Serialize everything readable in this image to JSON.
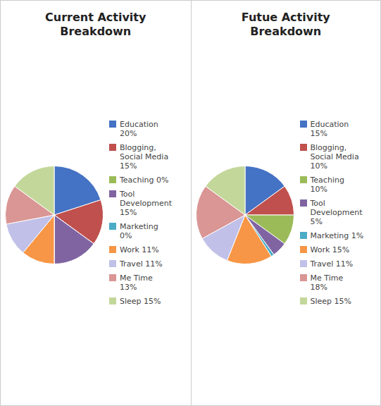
{
  "chart_data": [
    {
      "type": "pie",
      "title": "Current Activity\nBreakdown",
      "categories": [
        "Education\n20%",
        "Blogging,\nSocial Media\n15%",
        "Teaching 0%",
        "Tool\nDevelopment\n15%",
        "Marketing\n0%",
        "Work 11%",
        "Travel 11%",
        "Me Time\n13%",
        "Sleep  15%"
      ],
      "values": [
        20,
        15,
        0.001,
        15,
        0.001,
        11,
        11,
        13,
        15
      ],
      "colors": [
        "#4472C4",
        "#C0504D",
        "#9BBB59",
        "#8064A2",
        "#4BACC6",
        "#F79646",
        "#C0C0E8",
        "#D99694",
        "#C4D79B"
      ],
      "legend": "right"
    },
    {
      "type": "pie",
      "title": "Futue Activity\nBreakdown",
      "categories": [
        "Education\n15%",
        "Blogging,\nSocial Media\n10%",
        "Teaching\n10%",
        "Tool\nDevelopment\n5%",
        "Marketing 1%",
        "Work  15%",
        "Travel 11%",
        "Me Time\n18%",
        "Sleep  15%"
      ],
      "values": [
        15,
        10,
        10,
        5,
        1,
        15,
        11,
        18,
        15
      ],
      "colors": [
        "#4472C4",
        "#C0504D",
        "#9BBB59",
        "#8064A2",
        "#4BACC6",
        "#F79646",
        "#C0C0E8",
        "#D99694",
        "#C4D79B"
      ],
      "legend": "right"
    }
  ]
}
